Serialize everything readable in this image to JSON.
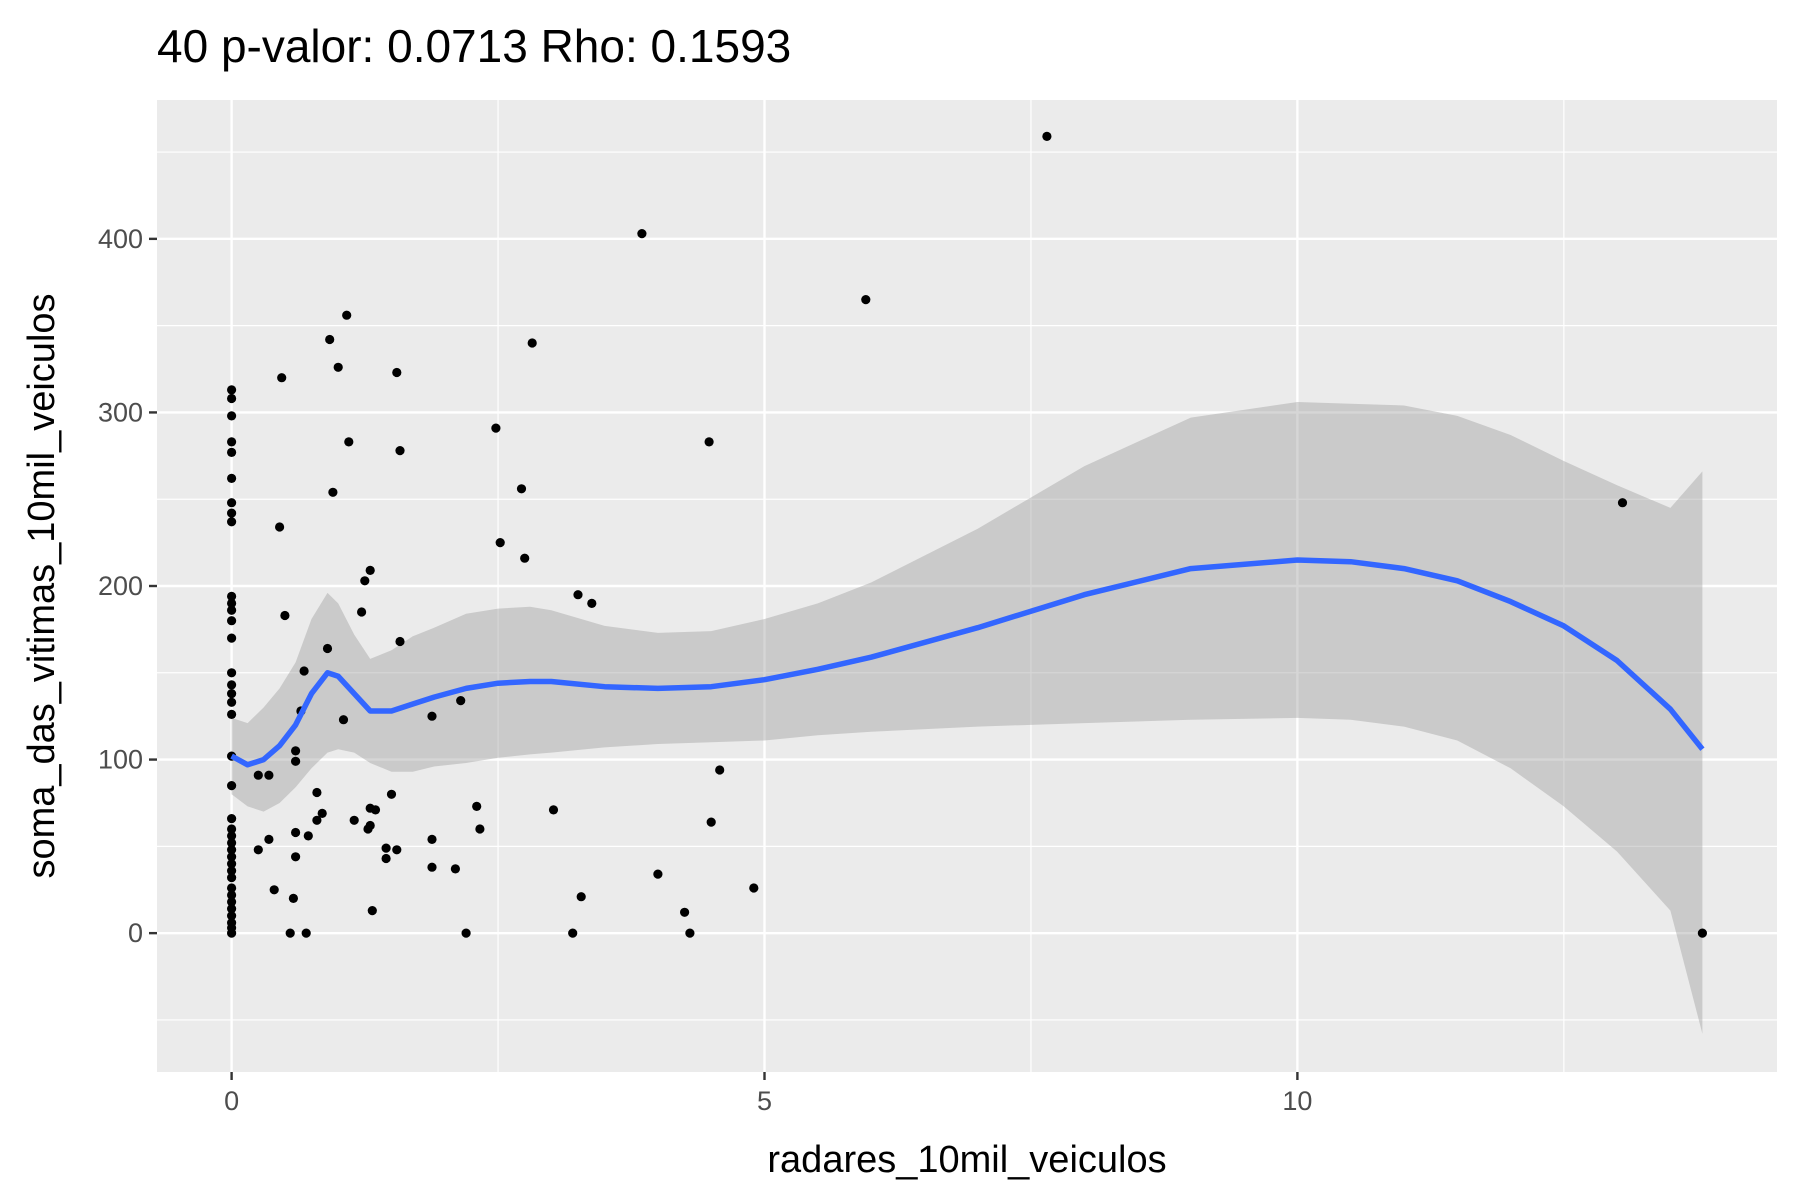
{
  "chart_data": {
    "type": "scatter",
    "title": "40 p-valor: 0.0713 Rho: 0.1593",
    "xlabel": "radares_10mil_veiculos",
    "ylabel": "soma_das_vitimas_10mil_veiculos",
    "xlim": [
      -0.7,
      14.5
    ],
    "ylim": [
      -80,
      480
    ],
    "x_ticks": [
      0,
      5,
      10
    ],
    "x_tick_labels": [
      "0",
      "5",
      "10"
    ],
    "y_ticks": [
      0,
      100,
      200,
      300,
      400
    ],
    "y_tick_labels": [
      "0",
      "100",
      "200",
      "300",
      "400"
    ],
    "grid": true,
    "legend": "none",
    "colors": {
      "panel_background": "#ebebeb",
      "grid": "#ffffff",
      "points": "#000000",
      "smooth_line": "#3366ff",
      "confidence_band": "#999999"
    },
    "points": [
      [
        0,
        0
      ],
      [
        0,
        3
      ],
      [
        0,
        6
      ],
      [
        0,
        10
      ],
      [
        0,
        14
      ],
      [
        0,
        18
      ],
      [
        0,
        22
      ],
      [
        0,
        26
      ],
      [
        0,
        32
      ],
      [
        0,
        36
      ],
      [
        0,
        40
      ],
      [
        0,
        44
      ],
      [
        0,
        48
      ],
      [
        0,
        52
      ],
      [
        0,
        56
      ],
      [
        0,
        60
      ],
      [
        0,
        66
      ],
      [
        0,
        85
      ],
      [
        0,
        102
      ],
      [
        0,
        126
      ],
      [
        0,
        133
      ],
      [
        0,
        138
      ],
      [
        0,
        143
      ],
      [
        0,
        150
      ],
      [
        0,
        170
      ],
      [
        0,
        180
      ],
      [
        0,
        186
      ],
      [
        0,
        190
      ],
      [
        0,
        194
      ],
      [
        0,
        237
      ],
      [
        0,
        242
      ],
      [
        0,
        248
      ],
      [
        0,
        262
      ],
      [
        0,
        277
      ],
      [
        0,
        283
      ],
      [
        0,
        298
      ],
      [
        0,
        308
      ],
      [
        0,
        313
      ],
      [
        0.25,
        48
      ],
      [
        0.25,
        91
      ],
      [
        0.35,
        91
      ],
      [
        0.35,
        54
      ],
      [
        0.4,
        25
      ],
      [
        0.45,
        234
      ],
      [
        0.47,
        320
      ],
      [
        0.5,
        183
      ],
      [
        0.55,
        0
      ],
      [
        0.58,
        20
      ],
      [
        0.6,
        105
      ],
      [
        0.6,
        99
      ],
      [
        0.6,
        44
      ],
      [
        0.6,
        58
      ],
      [
        0.65,
        128
      ],
      [
        0.68,
        151
      ],
      [
        0.7,
        0
      ],
      [
        0.72,
        56
      ],
      [
        0.8,
        65
      ],
      [
        0.8,
        81
      ],
      [
        0.85,
        69
      ],
      [
        0.9,
        164
      ],
      [
        0.92,
        342
      ],
      [
        0.95,
        254
      ],
      [
        1.0,
        326
      ],
      [
        1.05,
        123
      ],
      [
        1.08,
        356
      ],
      [
        1.1,
        283
      ],
      [
        1.15,
        65
      ],
      [
        1.22,
        185
      ],
      [
        1.25,
        203
      ],
      [
        1.28,
        60
      ],
      [
        1.3,
        72
      ],
      [
        1.3,
        62
      ],
      [
        1.3,
        209
      ],
      [
        1.32,
        13
      ],
      [
        1.35,
        71
      ],
      [
        1.45,
        43
      ],
      [
        1.45,
        49
      ],
      [
        1.5,
        80
      ],
      [
        1.55,
        323
      ],
      [
        1.55,
        48
      ],
      [
        1.58,
        278
      ],
      [
        1.58,
        168
      ],
      [
        1.88,
        38
      ],
      [
        1.88,
        125
      ],
      [
        1.88,
        54
      ],
      [
        2.1,
        37
      ],
      [
        2.15,
        134
      ],
      [
        2.2,
        0
      ],
      [
        2.3,
        73
      ],
      [
        2.33,
        60
      ],
      [
        2.48,
        291
      ],
      [
        2.52,
        225
      ],
      [
        2.72,
        256
      ],
      [
        2.75,
        216
      ],
      [
        2.82,
        340
      ],
      [
        3.02,
        71
      ],
      [
        3.2,
        0
      ],
      [
        3.25,
        195
      ],
      [
        3.28,
        21
      ],
      [
        3.38,
        190
      ],
      [
        3.85,
        403
      ],
      [
        4.0,
        34
      ],
      [
        4.25,
        12
      ],
      [
        4.3,
        0
      ],
      [
        4.48,
        283
      ],
      [
        4.5,
        64
      ],
      [
        4.58,
        94
      ],
      [
        4.9,
        26
      ],
      [
        5.95,
        365
      ],
      [
        7.65,
        459
      ],
      [
        13.05,
        248
      ],
      [
        13.8,
        0
      ]
    ],
    "smooth": {
      "x": [
        0,
        0.15,
        0.3,
        0.45,
        0.6,
        0.75,
        0.9,
        1.0,
        1.15,
        1.3,
        1.5,
        1.7,
        1.9,
        2.2,
        2.5,
        2.8,
        3.0,
        3.5,
        4.0,
        4.5,
        5.0,
        5.5,
        6.0,
        7.0,
        8.0,
        9.0,
        10.0,
        10.5,
        11.0,
        11.5,
        12.0,
        12.5,
        13.0,
        13.5,
        13.8
      ],
      "y": [
        102,
        97,
        100,
        108,
        120,
        138,
        150,
        148,
        138,
        128,
        128,
        132,
        136,
        141,
        144,
        145,
        145,
        142,
        141,
        142,
        146,
        152,
        159,
        176,
        195,
        210,
        215,
        214,
        210,
        203,
        191,
        177,
        157,
        129,
        106
      ],
      "ymin": [
        80,
        73,
        70,
        75,
        84,
        95,
        104,
        106,
        104,
        98,
        93,
        93,
        96,
        98,
        101,
        103,
        104,
        107,
        109,
        110,
        111,
        114,
        116,
        119,
        121,
        123,
        124,
        123,
        119,
        111,
        95,
        73,
        47,
        13,
        -58
      ],
      "ymax": [
        124,
        121,
        130,
        141,
        156,
        181,
        196,
        190,
        172,
        158,
        163,
        171,
        176,
        184,
        187,
        188,
        186,
        177,
        173,
        174,
        181,
        190,
        202,
        233,
        269,
        297,
        306,
        305,
        304,
        298,
        287,
        272,
        258,
        245,
        266
      ]
    }
  }
}
